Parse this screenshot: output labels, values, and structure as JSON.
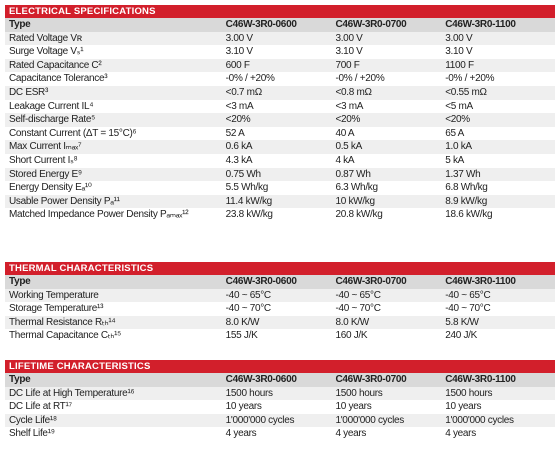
{
  "sections": [
    {
      "title": "ELECTRICAL SPECIFICATIONS",
      "header": [
        "Type",
        "C46W-3R0-0600",
        "C46W-3R0-0700",
        "C46W-3R0-1100"
      ],
      "rows": [
        [
          "Rated Voltage Vʀ",
          "3.00 V",
          "3.00 V",
          "3.00 V"
        ],
        [
          "Surge Voltage Vₛ¹",
          "3.10 V",
          "3.10 V",
          "3.10 V"
        ],
        [
          "Rated Capacitance C²",
          "600 F",
          "700 F",
          "1100 F"
        ],
        [
          "Capacitance Tolerance³",
          "-0% / +20%",
          "-0% / +20%",
          "-0% / +20%"
        ],
        [
          "DC ESR³",
          "<0.7 mΩ",
          "<0.8 mΩ",
          "<0.55 mΩ"
        ],
        [
          "Leakage Current IL⁴",
          "<3 mA",
          "<3 mA",
          "<5 mA"
        ],
        [
          "Self-discharge Rate⁵",
          "<20%",
          "<20%",
          "<20%"
        ],
        [
          "Constant Current (ΔT = 15°C)⁶",
          "52 A",
          "40 A",
          "65 A"
        ],
        [
          "Max Current Iₘₐₓ⁷",
          "0.6 kA",
          "0.5 kA",
          "1.0 kA"
        ],
        [
          "Short Current Iₛ⁸",
          "4.3 kA",
          "4 kA",
          "5 kA"
        ],
        [
          "Stored Energy E⁹",
          "0.75 Wh",
          "0.87 Wh",
          "1.37 Wh"
        ],
        [
          "Energy Density Eₐ¹⁰",
          "5.5 Wh/kg",
          "6.3 Wh/kg",
          "6.8 Wh/kg"
        ],
        [
          "Usable Power Density Pₐ¹¹",
          "11.4 kW/kg",
          "10 kW/kg",
          "8.9 kW/kg"
        ],
        [
          "Matched Impedance Power Density Pₐₘₐₓ¹²",
          "23.8 kW/kg",
          "20.8 kW/kg",
          "18.6 kW/kg"
        ]
      ]
    },
    {
      "title": "THERMAL CHARACTERISTICS",
      "header": [
        "Type",
        "C46W-3R0-0600",
        "C46W-3R0-0700",
        "C46W-3R0-1100"
      ],
      "rows": [
        [
          "Working Temperature",
          "-40 ~ 65°C",
          "-40 ~ 65°C",
          "-40 ~ 65°C"
        ],
        [
          "Storage Temperature¹³",
          "-40 ~ 70°C",
          "-40 ~ 70°C",
          "-40 ~ 70°C"
        ],
        [
          "Thermal Resistance Rₜₕ¹⁴",
          "8.0 K/W",
          "8.0 K/W",
          "5.8 K/W"
        ],
        [
          "Thermal Capacitance Cₜₕ¹⁵",
          "155 J/K",
          "160 J/K",
          "240 J/K"
        ]
      ]
    },
    {
      "title": "LIFETIME CHARACTERISTICS",
      "header": [
        "Type",
        "C46W-3R0-0600",
        "C46W-3R0-0700",
        "C46W-3R0-1100"
      ],
      "rows": [
        [
          "DC Life at High Temperature¹⁶",
          "1500 hours",
          "1500 hours",
          "1500 hours"
        ],
        [
          "DC Life at RT¹⁷",
          "10 years",
          "10 years",
          "10 years"
        ],
        [
          "Cycle Life¹⁸",
          "1'000'000 cycles",
          "1'000'000 cycles",
          "1'000'000 cycles"
        ],
        [
          "Shelf Life¹⁹",
          "4 years",
          "4 years",
          "4 years"
        ]
      ]
    }
  ]
}
